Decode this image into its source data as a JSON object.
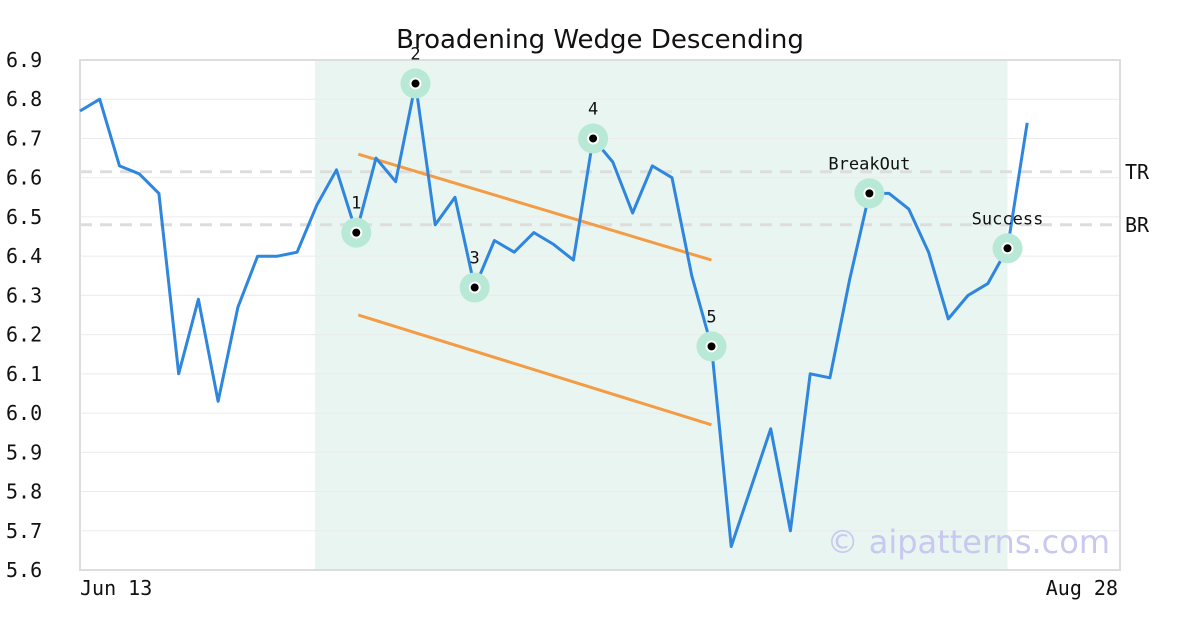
{
  "chart_data": {
    "type": "line",
    "title": "Broadening Wedge Descending",
    "ylim": [
      5.6,
      6.9
    ],
    "yticks": [
      "6.9",
      "6.8",
      "6.7",
      "6.6",
      "6.5",
      "6.4",
      "6.3",
      "6.2",
      "6.1",
      "6.0",
      "5.9",
      "5.8",
      "5.7",
      "5.6"
    ],
    "x_tick_labels": [
      "Jun 13",
      "Aug 28"
    ],
    "grid": true,
    "colors": {
      "price": "#2e86de",
      "wedge": "#f39c45",
      "highlight": "#e8f5f0",
      "marker_ring": "#b8e8d6",
      "reference": "#dddddd"
    },
    "series": [
      {
        "values": [
          6.77,
          6.8,
          6.63,
          6.61,
          6.56,
          6.1,
          6.29,
          6.03,
          6.27,
          6.4,
          6.4,
          6.41,
          6.53,
          6.62,
          6.46,
          6.65,
          6.59,
          6.84,
          6.48,
          6.55,
          6.32,
          6.44,
          6.41,
          6.46,
          6.43,
          6.39,
          6.7,
          6.64,
          6.51,
          6.63,
          6.6,
          6.35,
          6.17,
          5.66,
          5.81,
          5.96,
          5.7,
          6.1,
          6.09,
          6.34,
          6.56,
          6.56,
          6.52,
          6.41,
          6.24,
          6.3,
          6.33,
          6.42,
          6.74
        ]
      }
    ],
    "highlight_range": [
      12,
      47
    ],
    "wedge_lines": [
      {
        "name": "upper",
        "start": [
          14,
          6.66
        ],
        "end": [
          32,
          6.39
        ]
      },
      {
        "name": "lower",
        "start": [
          14,
          6.25
        ],
        "end": [
          32,
          5.97
        ]
      }
    ],
    "reference_lines": [
      {
        "label": "TR",
        "value": 6.615
      },
      {
        "label": "BR",
        "value": 6.48
      }
    ],
    "annotations": [
      {
        "label": "1",
        "index": 14,
        "value": 6.46
      },
      {
        "label": "2",
        "index": 17,
        "value": 6.84
      },
      {
        "label": "3",
        "index": 20,
        "value": 6.32
      },
      {
        "label": "4",
        "index": 26,
        "value": 6.7
      },
      {
        "label": "5",
        "index": 32,
        "value": 6.17
      },
      {
        "label": "BreakOut",
        "index": 40,
        "value": 6.56
      },
      {
        "label": "Success",
        "index": 47,
        "value": 6.42
      }
    ],
    "watermark": "© aipatterns.com"
  }
}
